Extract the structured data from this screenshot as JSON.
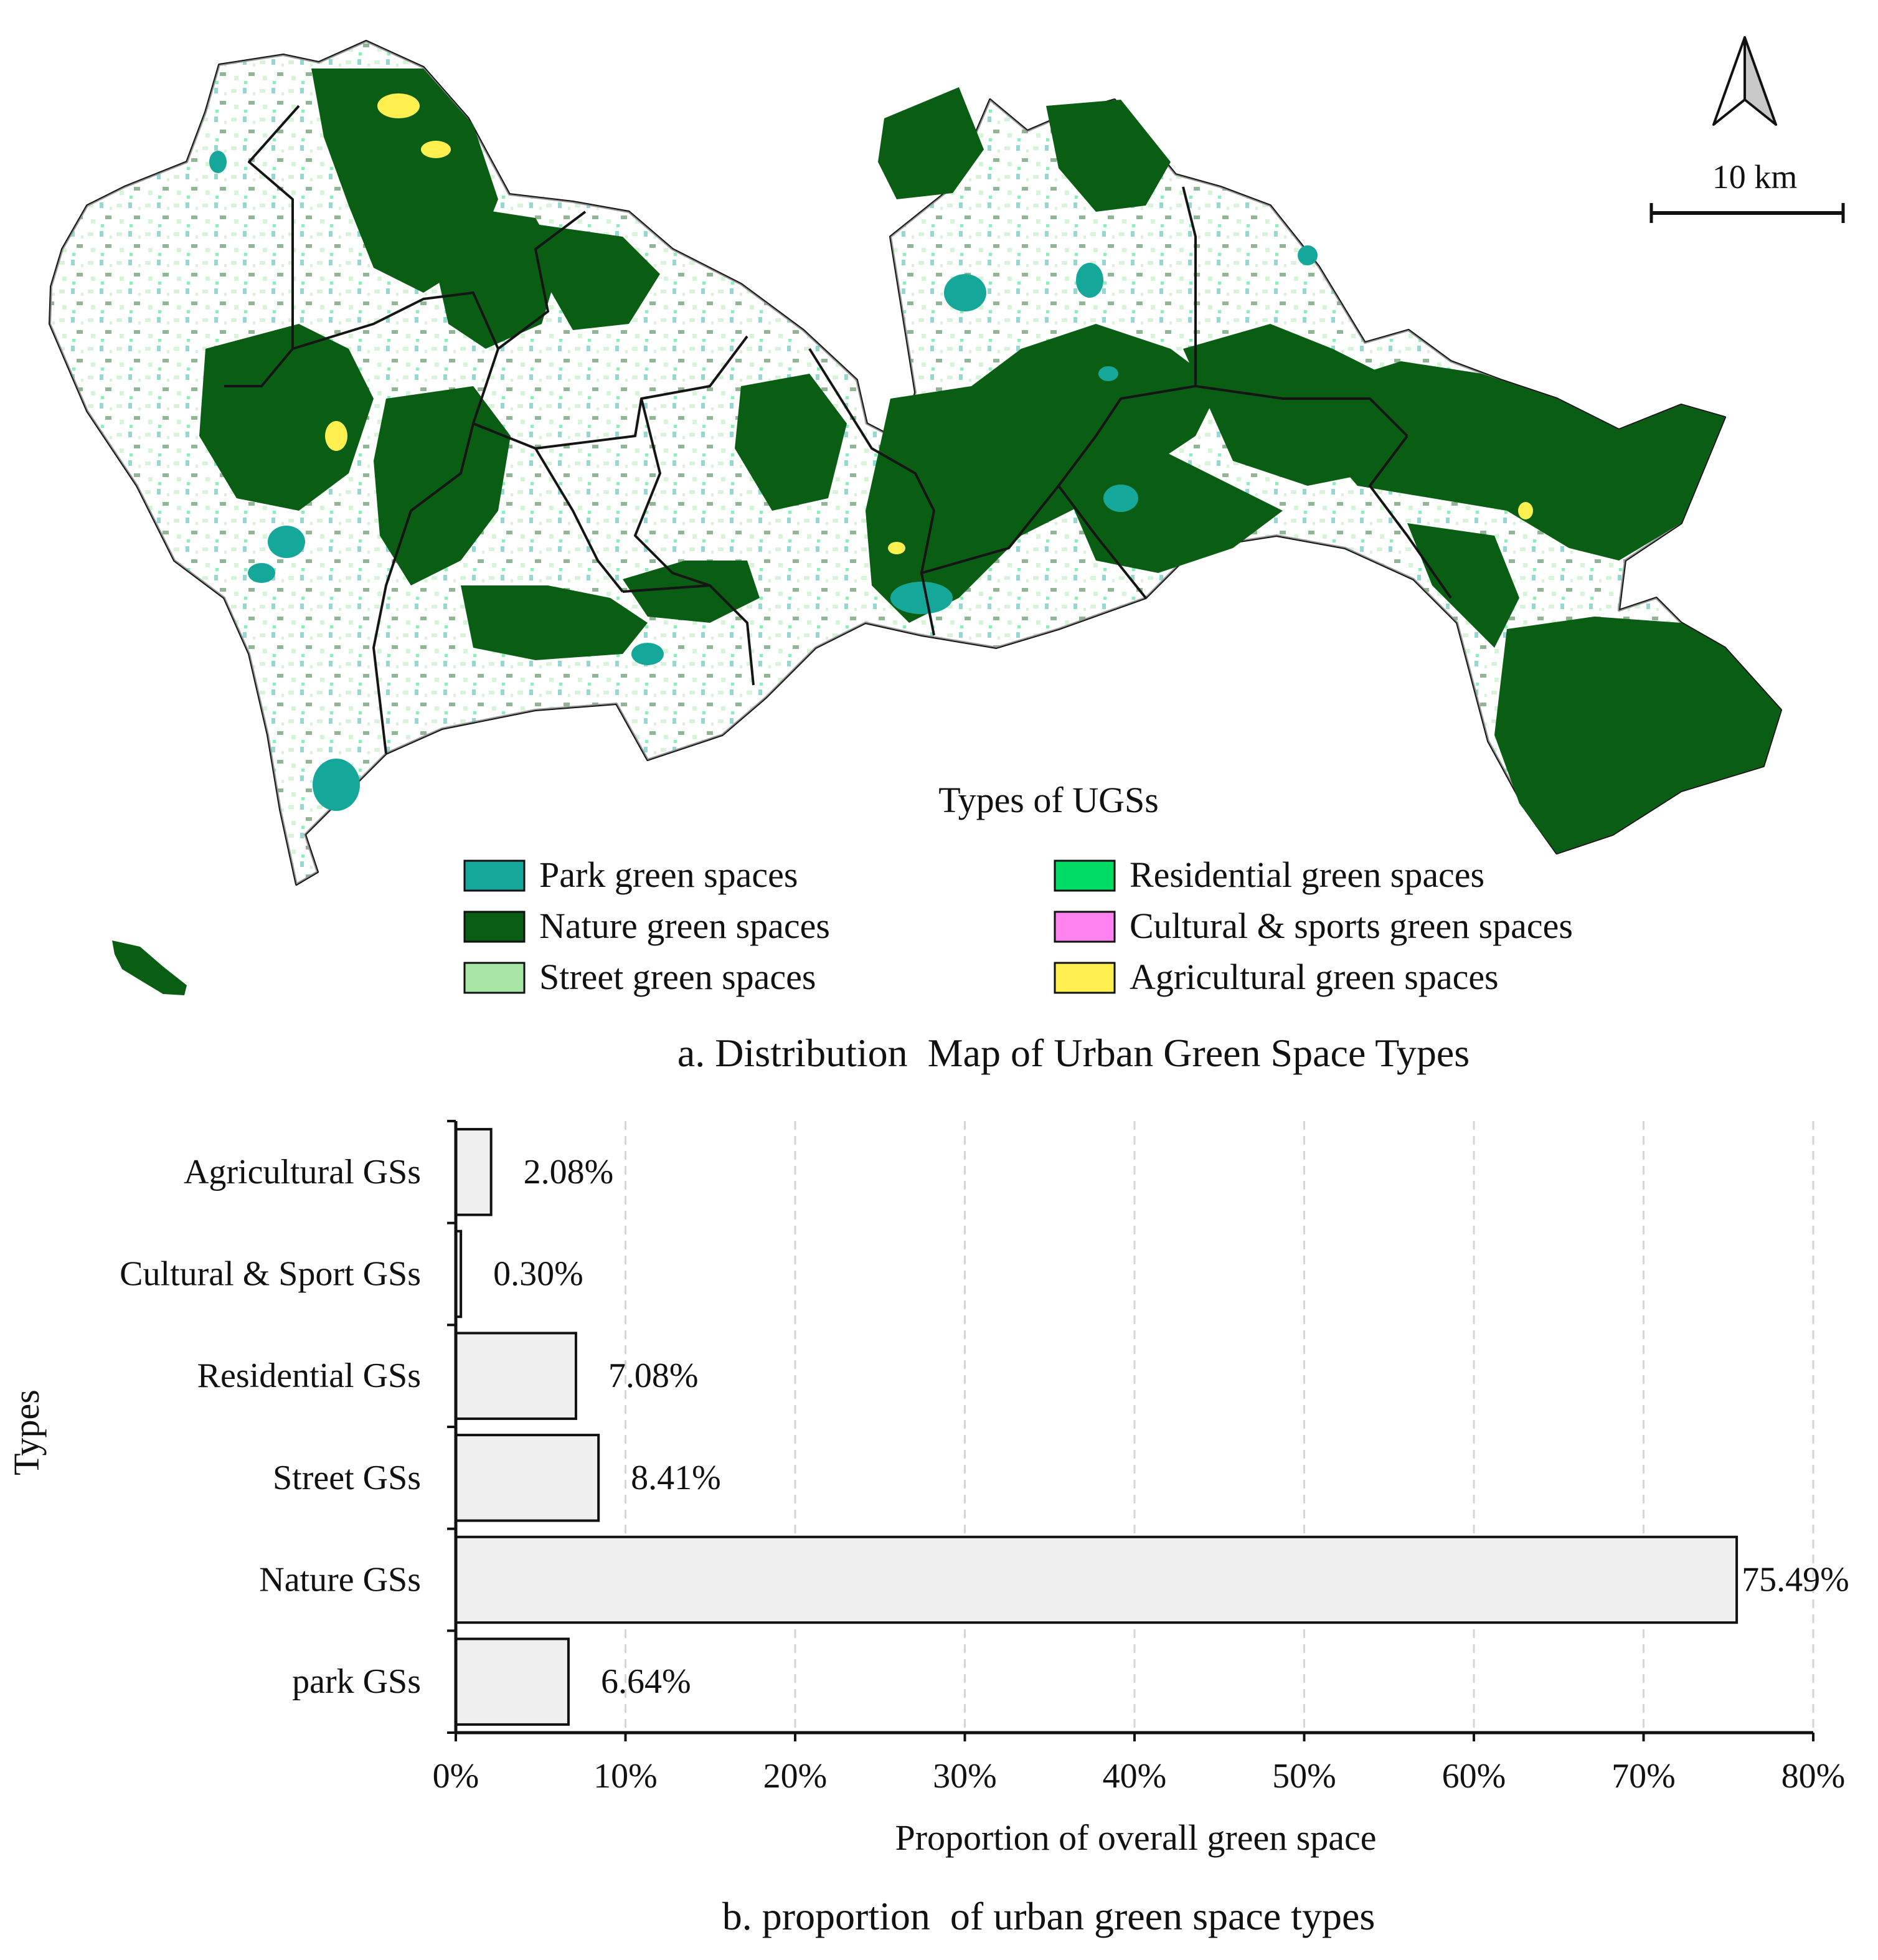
{
  "map": {
    "scale_label": "10 km",
    "legend_title": "Types of UGSs",
    "legend_items": [
      {
        "label": "Park green spaces",
        "color": "#15a89a"
      },
      {
        "label": "Nature green spaces",
        "color": "#0a5e14"
      },
      {
        "label": "Street green spaces",
        "color": "#a8e6a8"
      },
      {
        "label": "Residential green spaces",
        "color": "#00dc64"
      },
      {
        "label": "Cultural & sports green spaces",
        "color": "#ff82f0"
      },
      {
        "label": "Agricultural green spaces",
        "color": "#fff050"
      }
    ],
    "caption": "a. Distribution  Map of Urban Green Space Types"
  },
  "chart_data": {
    "type": "bar",
    "orientation": "horizontal",
    "categories": [
      "Agricultural GSs",
      "Cultural & Sport GSs",
      "Residential GSs",
      "Street GSs",
      "Nature GSs",
      "park GSs"
    ],
    "values": [
      2.08,
      0.3,
      7.08,
      8.41,
      75.49,
      6.64
    ],
    "value_labels": [
      "2.08%",
      "0.30%",
      "7.08%",
      "8.41%",
      "75.49%",
      "6.64%"
    ],
    "xlim": [
      0,
      80
    ],
    "xticks": [
      "0%",
      "10%",
      "20%",
      "30%",
      "40%",
      "50%",
      "60%",
      "70%",
      "80%"
    ],
    "xlabel": "Proportion of overall green space",
    "ylabel": "Types",
    "grid": "vertical dashed",
    "bar_color": "#f0f0f0",
    "caption": "b. proportion  of urban green space types"
  }
}
